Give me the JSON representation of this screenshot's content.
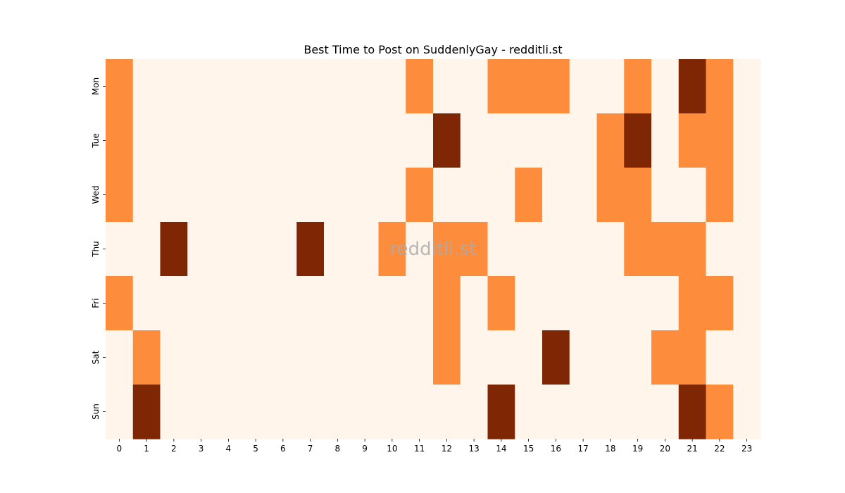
{
  "chart_data": {
    "type": "heatmap",
    "title": "Best Time to Post on SuddenlyGay - redditli.st",
    "watermark": "redditli.st",
    "x": [
      0,
      1,
      2,
      3,
      4,
      5,
      6,
      7,
      8,
      9,
      10,
      11,
      12,
      13,
      14,
      15,
      16,
      17,
      18,
      19,
      20,
      21,
      22,
      23
    ],
    "y": [
      "Mon",
      "Tue",
      "Wed",
      "Thu",
      "Fri",
      "Sat",
      "Sun"
    ],
    "values": [
      [
        1,
        0,
        0,
        0,
        0,
        0,
        0,
        0,
        0,
        0,
        0,
        1,
        0,
        0,
        1,
        1,
        1,
        0,
        0,
        1,
        0,
        2,
        1,
        0
      ],
      [
        1,
        0,
        0,
        0,
        0,
        0,
        0,
        0,
        0,
        0,
        0,
        0,
        2,
        0,
        0,
        0,
        0,
        0,
        1,
        2,
        0,
        1,
        1,
        0
      ],
      [
        1,
        0,
        0,
        0,
        0,
        0,
        0,
        0,
        0,
        0,
        0,
        1,
        0,
        0,
        0,
        1,
        0,
        0,
        1,
        1,
        0,
        0,
        1,
        0
      ],
      [
        0,
        0,
        2,
        0,
        0,
        0,
        0,
        2,
        0,
        0,
        1,
        0,
        1,
        1,
        0,
        0,
        0,
        0,
        0,
        1,
        1,
        1,
        0,
        0
      ],
      [
        1,
        0,
        0,
        0,
        0,
        0,
        0,
        0,
        0,
        0,
        0,
        0,
        1,
        0,
        1,
        0,
        0,
        0,
        0,
        0,
        0,
        1,
        1,
        0
      ],
      [
        0,
        1,
        0,
        0,
        0,
        0,
        0,
        0,
        0,
        0,
        0,
        0,
        1,
        0,
        0,
        0,
        2,
        0,
        0,
        0,
        1,
        1,
        0,
        0
      ],
      [
        0,
        2,
        0,
        0,
        0,
        0,
        0,
        0,
        0,
        0,
        0,
        0,
        0,
        0,
        2,
        0,
        0,
        0,
        0,
        0,
        0,
        2,
        1,
        0
      ]
    ],
    "colors": [
      "#fff5eb",
      "#fd8d3c",
      "#7f2704"
    ]
  }
}
